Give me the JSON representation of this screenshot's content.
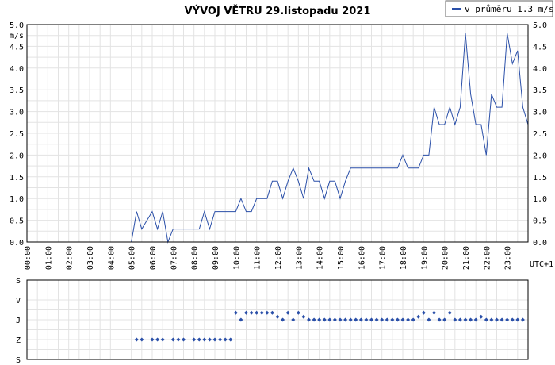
{
  "chart_data": [
    {
      "type": "line",
      "title": "VÝVOJ VĚTRU  29.listopadu 2021",
      "ylabel": "m/s",
      "xlabel": "UTC+1",
      "legend": "v průměru 1.3 m/s",
      "legend_position": "top-right",
      "ylim": [
        0,
        5
      ],
      "y_ticks": [
        "0.0",
        "0.5",
        "1.0",
        "1.5",
        "2.0",
        "2.5",
        "3.0",
        "3.5",
        "4.0",
        "4.5",
        "5.0"
      ],
      "x_ticks": [
        "00:00",
        "01:00",
        "02:00",
        "03:00",
        "04:00",
        "05:00",
        "06:00",
        "07:00",
        "08:00",
        "09:00",
        "10:00",
        "11:00",
        "12:00",
        "13:00",
        "14:00",
        "15:00",
        "16:00",
        "17:00",
        "18:00",
        "19:00",
        "20:00",
        "21:00",
        "22:00",
        "23:00"
      ],
      "xlim_hours": [
        0,
        24
      ],
      "grid": true,
      "color": "#2a4fa8",
      "x": [
        0,
        5.0,
        5.25,
        5.5,
        5.75,
        6.0,
        6.25,
        6.5,
        6.75,
        7.0,
        7.25,
        7.5,
        7.75,
        8.0,
        8.25,
        8.5,
        8.75,
        9.0,
        9.25,
        9.5,
        9.75,
        10.0,
        10.25,
        10.5,
        10.75,
        11.0,
        11.25,
        11.5,
        11.75,
        12.0,
        12.25,
        12.5,
        12.75,
        13.0,
        13.25,
        13.5,
        13.75,
        14.0,
        14.25,
        14.5,
        14.75,
        15.0,
        15.25,
        15.5,
        15.75,
        16.0,
        16.25,
        16.5,
        16.75,
        17.0,
        17.25,
        17.5,
        17.75,
        18.0,
        18.25,
        18.5,
        18.75,
        19.0,
        19.25,
        19.5,
        19.75,
        20.0,
        20.25,
        20.5,
        20.75,
        21.0,
        21.25,
        21.5,
        21.75,
        22.0,
        22.25,
        22.5,
        22.75,
        23.0,
        23.25,
        23.5,
        23.75,
        24.0
      ],
      "values": [
        0,
        0,
        0.7,
        0.3,
        0.5,
        0.7,
        0.3,
        0.7,
        0,
        0.3,
        0.3,
        0.3,
        0.3,
        0.3,
        0.3,
        0.7,
        0.3,
        0.7,
        0.7,
        0.7,
        0.7,
        0.7,
        1.0,
        0.7,
        0.7,
        1.0,
        1.0,
        1.0,
        1.4,
        1.4,
        1.0,
        1.4,
        1.7,
        1.4,
        1.0,
        1.7,
        1.4,
        1.4,
        1.0,
        1.4,
        1.4,
        1.0,
        1.4,
        1.7,
        1.7,
        1.7,
        1.7,
        1.7,
        1.7,
        1.7,
        1.7,
        1.7,
        1.7,
        2.0,
        1.7,
        1.7,
        1.7,
        2.0,
        2.0,
        3.1,
        2.7,
        2.7,
        3.1,
        2.7,
        3.1,
        4.8,
        3.4,
        2.7,
        2.7,
        2.0,
        3.4,
        3.1,
        3.1,
        4.8,
        4.1,
        4.4,
        3.1,
        2.7
      ]
    },
    {
      "type": "scatter",
      "ylabel_ticks": [
        "S",
        "V",
        "J",
        "Z",
        "S"
      ],
      "xlabel": "",
      "color": "#2a4fa8",
      "direction_levels": {
        "S_top": 0,
        "V": 1,
        "J": 2,
        "Z": 3,
        "S_bottom": 4
      },
      "x": [
        5.25,
        5.5,
        6.0,
        6.25,
        6.5,
        7.0,
        7.25,
        7.5,
        8.0,
        8.25,
        8.5,
        8.75,
        9.0,
        9.25,
        9.5,
        9.75,
        10.0,
        10.25,
        10.5,
        10.75,
        11.0,
        11.25,
        11.5,
        11.75,
        12.0,
        12.25,
        12.5,
        12.75,
        13.0,
        13.25,
        13.5,
        13.75,
        14.0,
        14.25,
        14.5,
        14.75,
        15.0,
        15.25,
        15.5,
        15.75,
        16.0,
        16.25,
        16.5,
        16.75,
        17.0,
        17.25,
        17.5,
        17.75,
        18.0,
        18.25,
        18.5,
        18.75,
        19.0,
        19.25,
        19.5,
        19.75,
        20.0,
        20.25,
        20.5,
        20.75,
        21.0,
        21.25,
        21.5,
        21.75,
        22.0,
        22.25,
        22.5,
        22.75,
        23.0,
        23.25,
        23.5,
        23.75
      ],
      "values": [
        3,
        3,
        3,
        3,
        3,
        3,
        3,
        3,
        3,
        3,
        3,
        3,
        3,
        3,
        3,
        3,
        1.65,
        2,
        1.65,
        1.65,
        1.65,
        1.65,
        1.65,
        1.65,
        1.85,
        2,
        1.65,
        2,
        1.65,
        1.85,
        2,
        2,
        2,
        2,
        2,
        2,
        2,
        2,
        2,
        2,
        2,
        2,
        2,
        2,
        2,
        2,
        2,
        2,
        2,
        2,
        2,
        1.85,
        1.65,
        2,
        1.65,
        2,
        2,
        1.65,
        2,
        2,
        2,
        2,
        2,
        1.85,
        2,
        2,
        2,
        2,
        2,
        2,
        2,
        2
      ]
    }
  ]
}
